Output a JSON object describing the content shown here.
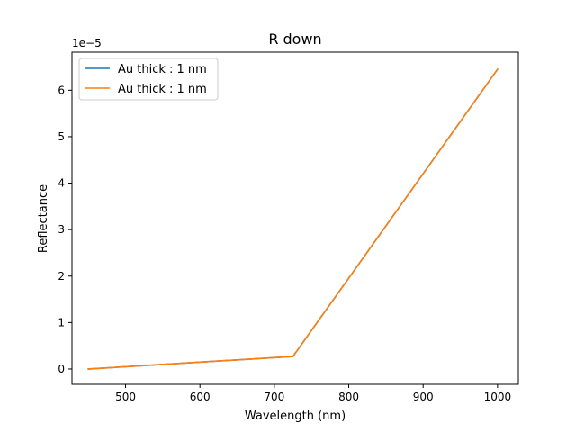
{
  "chart_data": {
    "type": "line",
    "title": "R down",
    "xlabel": "Wavelength (nm)",
    "ylabel": "Reflectance",
    "y_offset_text": "1e−5",
    "xlim": [
      428,
      1028
    ],
    "ylim": [
      -0.33,
      6.82
    ],
    "x_ticks": [
      500,
      600,
      700,
      800,
      900,
      1000
    ],
    "y_ticks": [
      0,
      1,
      2,
      3,
      4,
      5,
      6
    ],
    "grid": false,
    "legend": "top-left",
    "series": [
      {
        "name": "Au thick : 1 nm",
        "color": "#1f77b4",
        "x": [
          450,
          725,
          1000
        ],
        "y": [
          0.0,
          0.27,
          6.45
        ]
      },
      {
        "name": "Au thick : 1 nm",
        "color": "#ff7f0e",
        "x": [
          450,
          725,
          1000
        ],
        "y": [
          0.0,
          0.27,
          6.45
        ]
      }
    ]
  }
}
